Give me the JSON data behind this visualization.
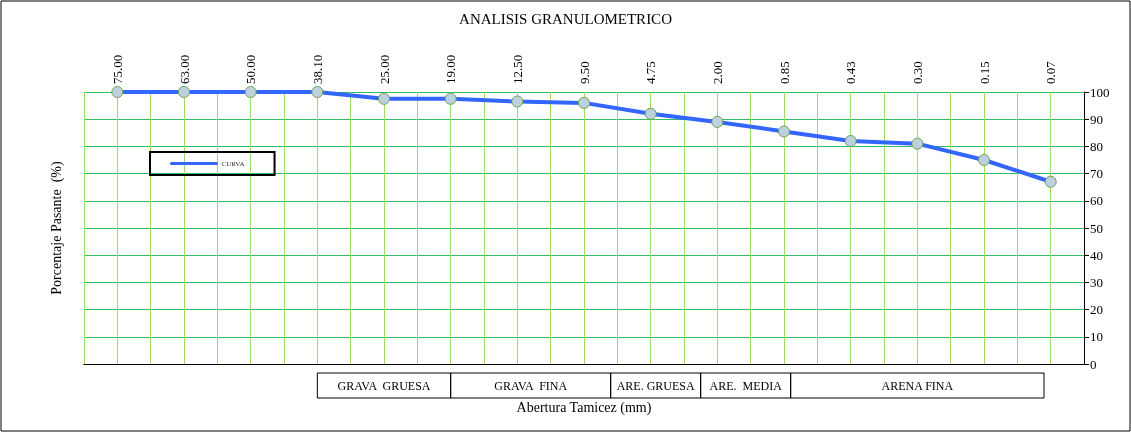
{
  "chart_data": {
    "type": "line",
    "title": "ANALISIS GRANULOMETRICO",
    "xlabel": "Abertura Tamicez (mm)",
    "ylabel": "Porcentaje Pasante  (%)",
    "categories": [
      "75.00",
      "63.00",
      "50.00",
      "38.10",
      "25.00",
      "19.00",
      "12.50",
      "9.50",
      "4.75",
      "2.00",
      "0.85",
      "0.43",
      "0.30",
      "0.15",
      "0.07"
    ],
    "series": [
      {
        "name": "CURVA",
        "color": "#3366ff",
        "values": [
          100,
          100,
          100,
          100,
          97.5,
          97.5,
          96.5,
          96,
          92,
          89,
          85.5,
          82,
          81,
          75,
          67
        ]
      }
    ],
    "ylim": [
      0,
      100
    ],
    "yticks": [
      0,
      10,
      20,
      30,
      40,
      50,
      60,
      70,
      80,
      90,
      100
    ],
    "grid": true,
    "legend": "top left",
    "marker": "circle",
    "line_style": "solid",
    "annotations": [
      "GRAVA  GRUESA",
      "GRAVA  FINA",
      "ARE. GRUESA",
      "ARE.  MEDIA",
      "ARENA FINA"
    ]
  }
}
